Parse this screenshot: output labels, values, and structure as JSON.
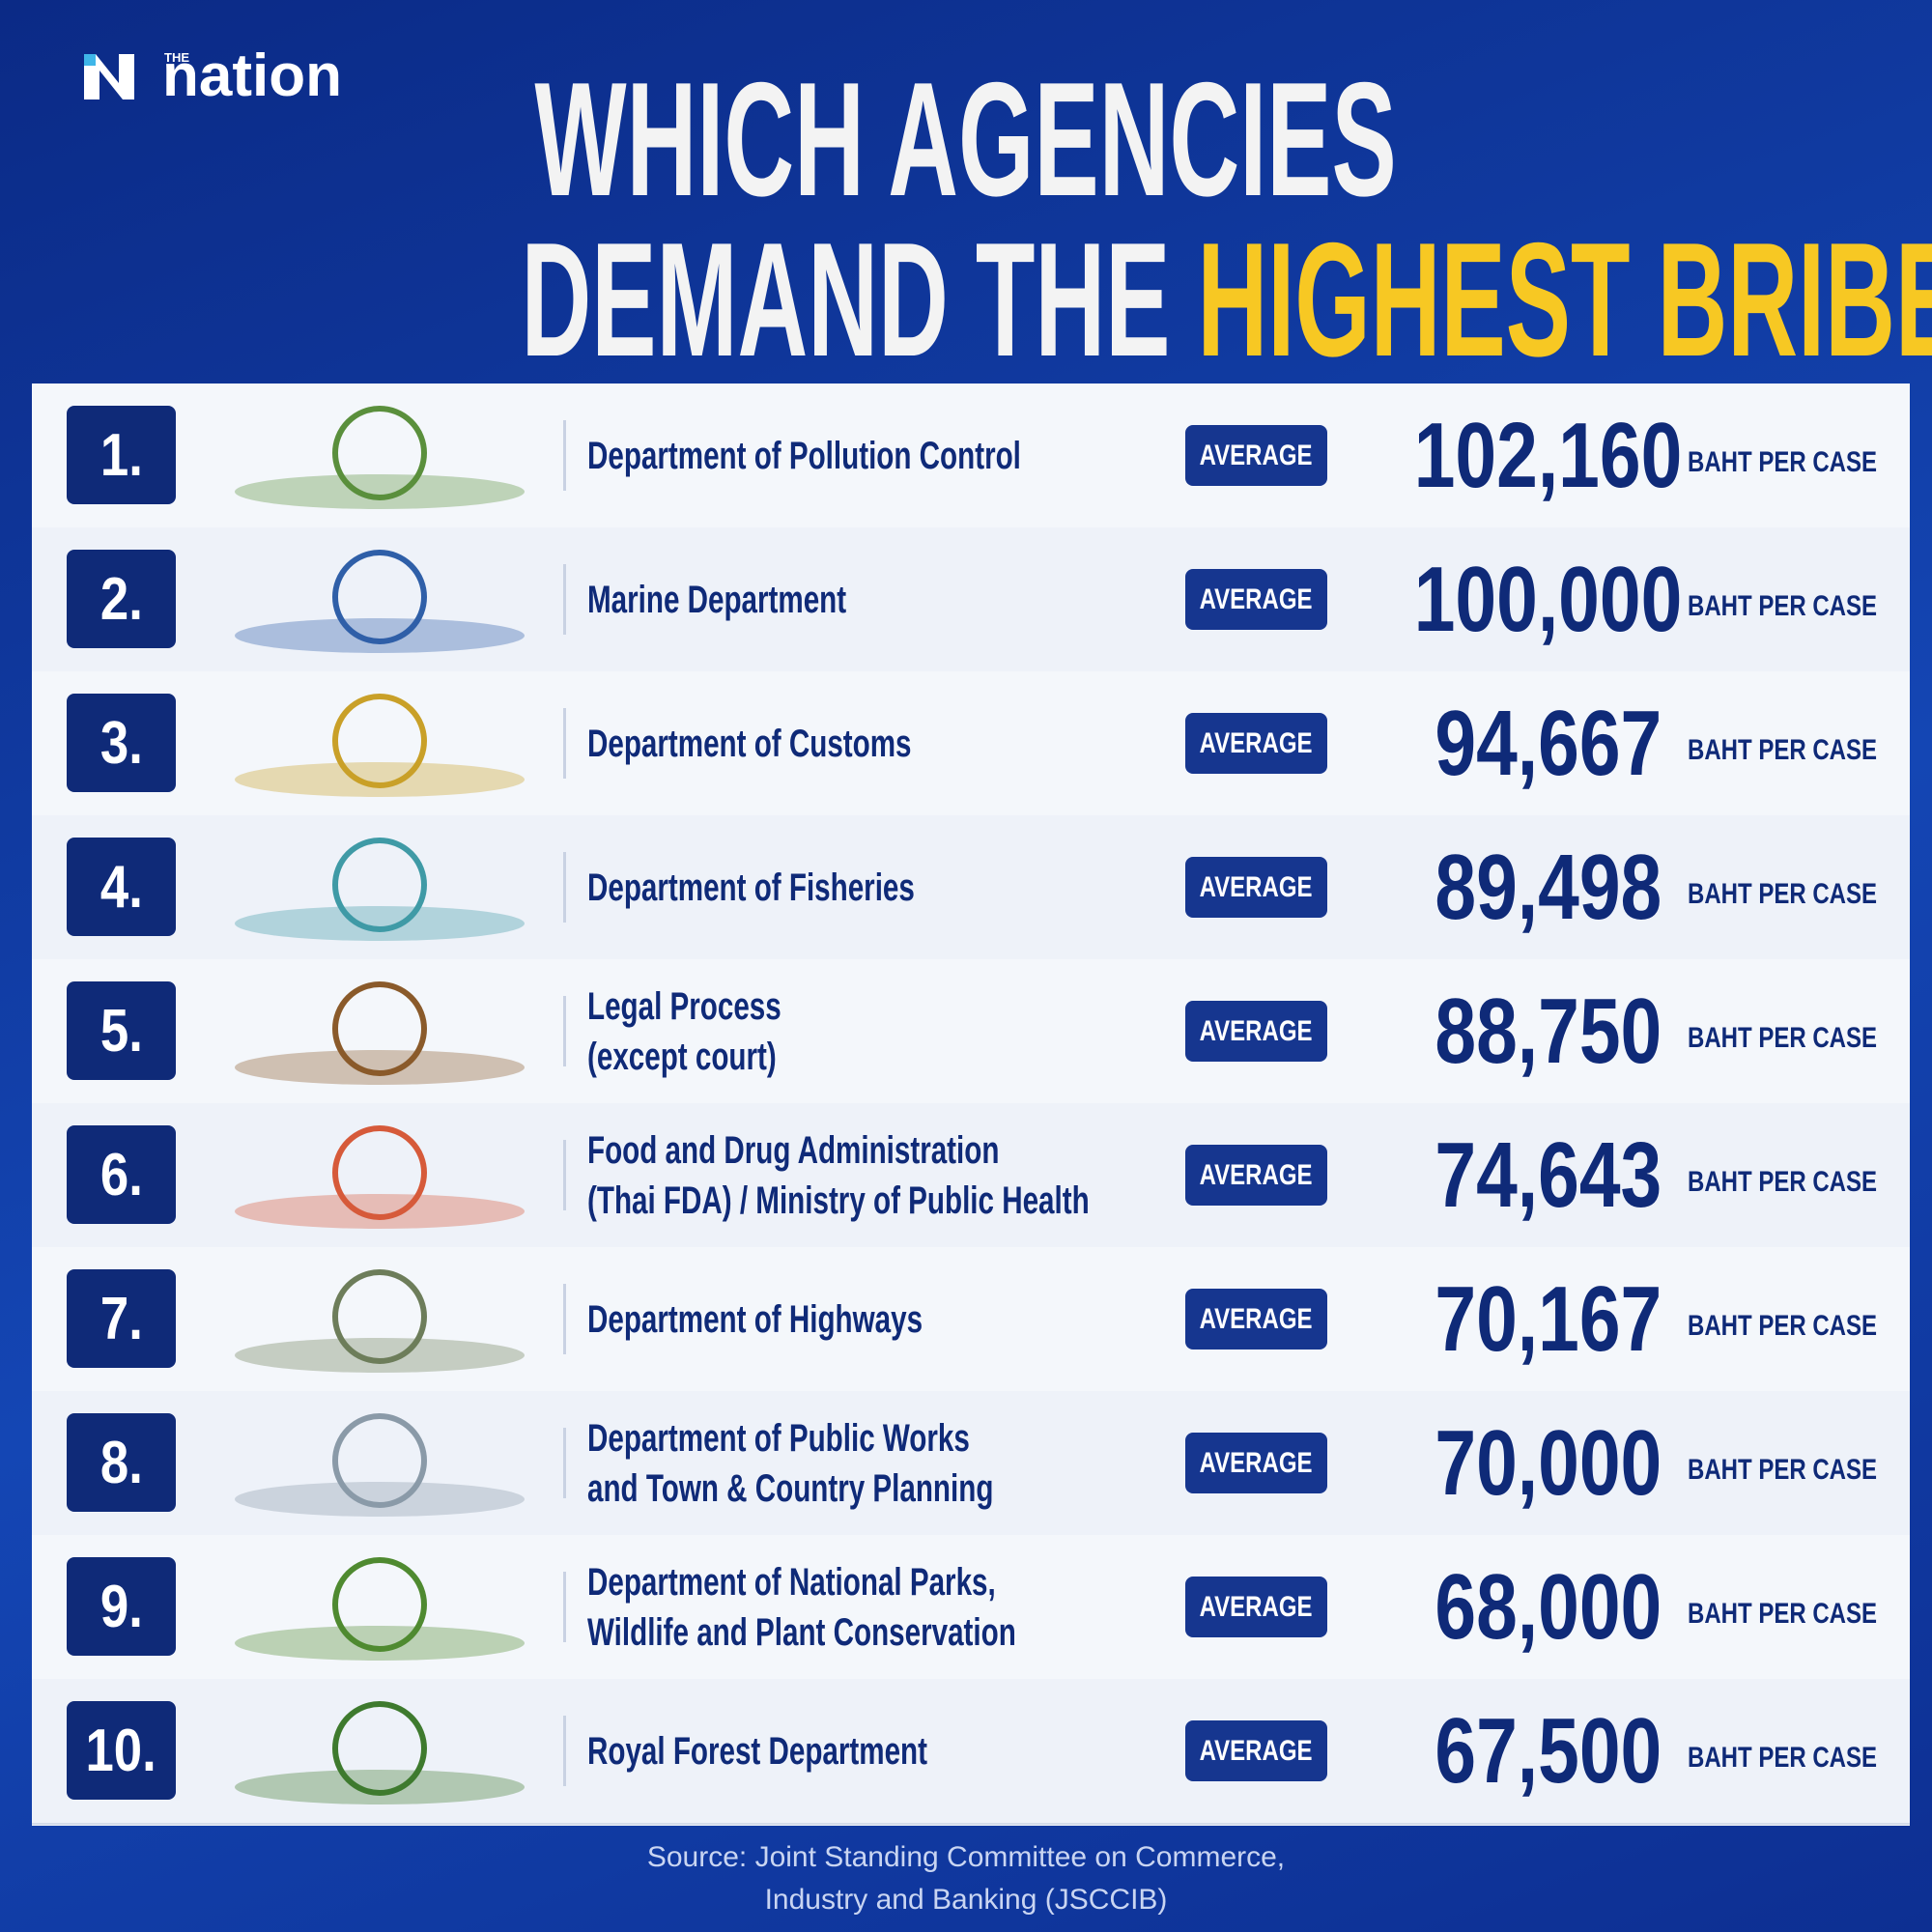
{
  "header": {
    "logo": {
      "small": "THE",
      "main": "nation"
    },
    "title": {
      "line1": "WHICH AGENCIES",
      "line2_start": "DEMAND THE",
      "line2_highlight": "HIGHEST BRIBES?"
    }
  },
  "rows": [
    {
      "rank": "1.",
      "name": [
        "Department of Pollution Control"
      ],
      "badge": "AVERAGE",
      "amount": "102,160",
      "unit": "BAHT PER CASE"
    },
    {
      "rank": "2.",
      "name": [
        "Marine Department"
      ],
      "badge": "AVERAGE",
      "amount": "100,000",
      "unit": "BAHT PER CASE"
    },
    {
      "rank": "3.",
      "name": [
        "Department of Customs"
      ],
      "badge": "AVERAGE",
      "amount": "94,667",
      "unit": "BAHT PER CASE"
    },
    {
      "rank": "4.",
      "name": [
        "Department of Fisheries"
      ],
      "badge": "AVERAGE",
      "amount": "89,498",
      "unit": "BAHT PER CASE"
    },
    {
      "rank": "5.",
      "name": [
        "Legal Process",
        "(except court)"
      ],
      "badge": "AVERAGE",
      "amount": "88,750",
      "unit": "BAHT PER CASE"
    },
    {
      "rank": "6.",
      "name": [
        "Food and Drug Administration",
        "(Thai FDA) / Ministry of Public Health"
      ],
      "badge": "AVERAGE",
      "amount": "74,643",
      "unit": "BAHT PER CASE"
    },
    {
      "rank": "7.",
      "name": [
        "Department of Highways"
      ],
      "badge": "AVERAGE",
      "amount": "70,167",
      "unit": "BAHT PER CASE"
    },
    {
      "rank": "8.",
      "name": [
        "Department of Public Works",
        "and Town & Country Planning"
      ],
      "badge": "AVERAGE",
      "amount": "70,000",
      "unit": "BAHT PER CASE"
    },
    {
      "rank": "9.",
      "name": [
        "Department of National Parks,",
        "Wildlife and Plant Conservation"
      ],
      "badge": "AVERAGE",
      "amount": "68,000",
      "unit": "BAHT PER CASE"
    },
    {
      "rank": "10.",
      "name": [
        "Royal Forest Department"
      ],
      "badge": "AVERAGE",
      "amount": "67,500",
      "unit": "BAHT PER CASE"
    }
  ],
  "source": [
    "Source: Joint Standing Committee on Commerce,",
    "Industry and Banking (JSCCIB)"
  ]
}
